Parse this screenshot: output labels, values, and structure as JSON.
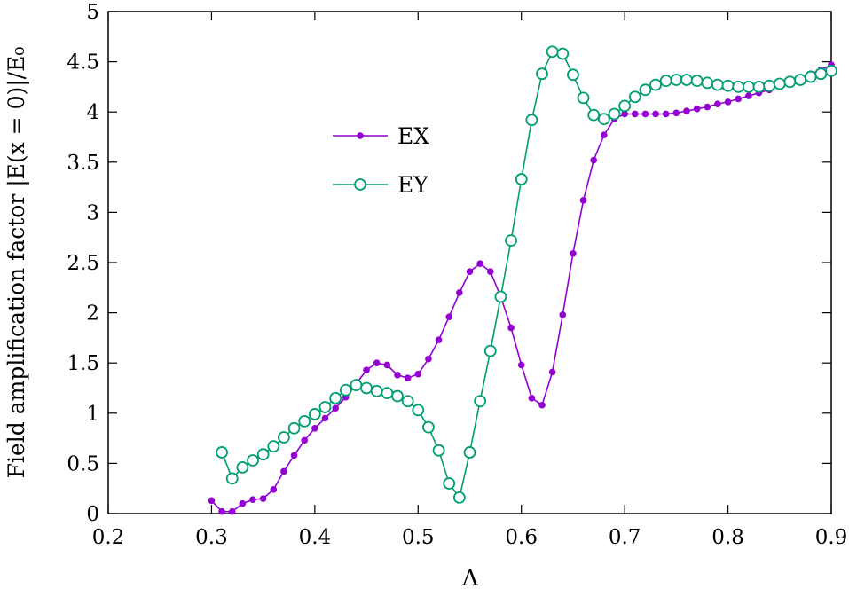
{
  "chart_data": {
    "type": "line",
    "xlabel": "Λ",
    "ylabel": "Field amplification factor |E(x = 0)|/E₀",
    "xlim": [
      0.2,
      0.9
    ],
    "ylim": [
      0,
      5
    ],
    "xticks": [
      "0.2",
      "0.3",
      "0.4",
      "0.5",
      "0.6",
      "0.7",
      "0.8",
      "0.9"
    ],
    "yticks": [
      "0",
      "0.5",
      "1",
      "1.5",
      "2",
      "2.5",
      "3",
      "3.5",
      "4",
      "4.5",
      "5"
    ],
    "legend_position": "center-left",
    "grid": false,
    "series": [
      {
        "name": "EX",
        "color": "#9400D3",
        "marker": "filled-circle",
        "x": [
          0.3,
          0.31,
          0.32,
          0.33,
          0.34,
          0.35,
          0.36,
          0.37,
          0.38,
          0.39,
          0.4,
          0.41,
          0.42,
          0.43,
          0.44,
          0.45,
          0.46,
          0.47,
          0.48,
          0.49,
          0.5,
          0.51,
          0.52,
          0.53,
          0.54,
          0.55,
          0.56,
          0.57,
          0.58,
          0.59,
          0.6,
          0.61,
          0.62,
          0.63,
          0.64,
          0.65,
          0.66,
          0.67,
          0.68,
          0.69,
          0.7,
          0.71,
          0.72,
          0.73,
          0.74,
          0.75,
          0.76,
          0.77,
          0.78,
          0.79,
          0.8,
          0.81,
          0.82,
          0.83,
          0.84,
          0.85,
          0.86,
          0.87,
          0.88,
          0.89,
          0.9
        ],
        "y": [
          0.13,
          0.02,
          0.02,
          0.1,
          0.14,
          0.15,
          0.24,
          0.42,
          0.58,
          0.73,
          0.85,
          0.95,
          1.05,
          1.16,
          1.29,
          1.43,
          1.5,
          1.48,
          1.38,
          1.35,
          1.39,
          1.54,
          1.73,
          1.96,
          2.2,
          2.41,
          2.49,
          2.41,
          2.16,
          1.85,
          1.48,
          1.15,
          1.08,
          1.41,
          1.98,
          2.59,
          3.12,
          3.52,
          3.77,
          3.93,
          3.98,
          3.98,
          3.98,
          3.98,
          3.98,
          3.99,
          4.01,
          4.03,
          4.05,
          4.08,
          4.1,
          4.13,
          4.16,
          4.19,
          4.22,
          4.26,
          4.3,
          4.34,
          4.38,
          4.42,
          4.47
        ]
      },
      {
        "name": "EY",
        "color": "#009E73",
        "marker": "open-circle",
        "x": [
          0.31,
          0.32,
          0.33,
          0.34,
          0.35,
          0.36,
          0.37,
          0.38,
          0.39,
          0.4,
          0.41,
          0.42,
          0.43,
          0.44,
          0.45,
          0.46,
          0.47,
          0.48,
          0.49,
          0.5,
          0.51,
          0.52,
          0.53,
          0.54,
          0.55,
          0.56,
          0.57,
          0.58,
          0.59,
          0.6,
          0.61,
          0.62,
          0.63,
          0.64,
          0.65,
          0.66,
          0.67,
          0.68,
          0.69,
          0.7,
          0.71,
          0.72,
          0.73,
          0.74,
          0.75,
          0.76,
          0.77,
          0.78,
          0.79,
          0.8,
          0.81,
          0.82,
          0.83,
          0.84,
          0.85,
          0.86,
          0.87,
          0.88,
          0.89,
          0.9
        ],
        "y": [
          0.61,
          0.35,
          0.46,
          0.53,
          0.59,
          0.67,
          0.76,
          0.85,
          0.92,
          0.99,
          1.06,
          1.15,
          1.23,
          1.28,
          1.25,
          1.22,
          1.2,
          1.17,
          1.12,
          1.03,
          0.86,
          0.63,
          0.3,
          0.16,
          0.61,
          1.12,
          1.62,
          2.16,
          2.72,
          3.33,
          3.92,
          4.38,
          4.6,
          4.58,
          4.37,
          4.14,
          3.97,
          3.93,
          3.98,
          4.06,
          4.15,
          4.22,
          4.27,
          4.31,
          4.32,
          4.32,
          4.31,
          4.29,
          4.27,
          4.26,
          4.25,
          4.25,
          4.25,
          4.26,
          4.28,
          4.3,
          4.32,
          4.35,
          4.38,
          4.41
        ]
      }
    ]
  }
}
